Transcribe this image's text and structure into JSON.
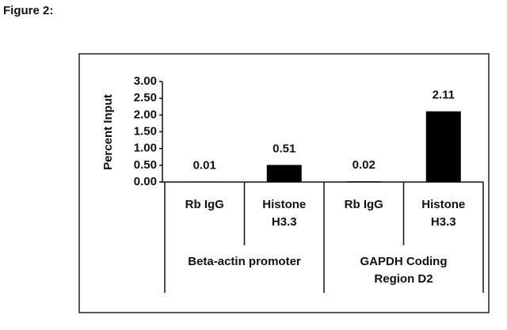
{
  "chart_data": {
    "type": "bar",
    "title": "Figure 2:",
    "ylabel": "Percent Input",
    "categories": [
      "Rb IgG",
      "Histone H3.3",
      "Rb IgG",
      "Histone H3.3"
    ],
    "groups": [
      "Beta-actin promoter",
      "GAPDH Coding Region D2"
    ],
    "values": [
      0.01,
      0.51,
      0.02,
      2.11
    ],
    "color": "#000000",
    "ylim": [
      0,
      3
    ],
    "yticks": [
      {
        "value": 0,
        "label": "0.00"
      },
      {
        "value": 0.5,
        "label": "0.50"
      },
      {
        "value": 1,
        "label": "1.00"
      },
      {
        "value": 1.5,
        "label": "1.50"
      },
      {
        "value": 2,
        "label": "2.00"
      },
      {
        "value": 2.5,
        "label": "2.50"
      },
      {
        "value": 3,
        "label": "3.00"
      }
    ]
  }
}
